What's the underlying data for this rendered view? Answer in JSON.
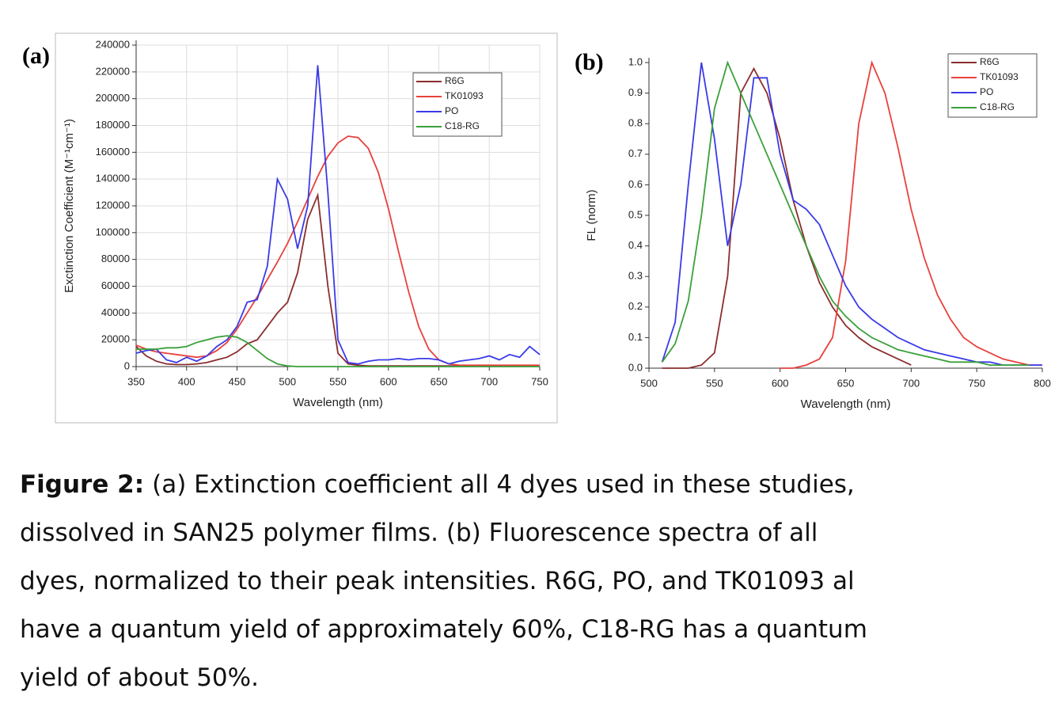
{
  "chart_data": [
    {
      "type": "line",
      "label": "(a)",
      "x_label": "Wavelength (nm)",
      "y_label": "Exctinction Coefficient (M⁻¹cm⁻¹)",
      "x": [
        350,
        360,
        370,
        380,
        390,
        400,
        410,
        420,
        430,
        440,
        450,
        460,
        470,
        480,
        490,
        500,
        510,
        520,
        530,
        540,
        550,
        560,
        570,
        580,
        590,
        600,
        610,
        620,
        630,
        640,
        650,
        660,
        670,
        680,
        690,
        700,
        710,
        720,
        730,
        740,
        750
      ],
      "series": [
        {
          "name": "R6G",
          "color": "#8b2e2e",
          "values": [
            15000,
            8000,
            4000,
            2000,
            1500,
            1500,
            2000,
            3000,
            5000,
            7000,
            11000,
            17000,
            20000,
            30000,
            40000,
            48000,
            70000,
            110000,
            128000,
            60000,
            10000,
            2000,
            1000,
            500,
            500,
            500,
            500,
            500,
            500,
            500,
            500,
            500,
            500,
            500,
            500,
            500,
            500,
            500,
            500,
            500,
            500
          ]
        },
        {
          "name": "TK01093",
          "color": "#e8413c",
          "values": [
            16000,
            13000,
            11000,
            10000,
            9000,
            8000,
            7000,
            8000,
            12000,
            18000,
            28000,
            40000,
            52000,
            65000,
            78000,
            92000,
            108000,
            125000,
            142000,
            157000,
            167000,
            172000,
            171000,
            163000,
            145000,
            118000,
            86000,
            56000,
            30000,
            13000,
            5000,
            2000,
            1000,
            1000,
            1000,
            1000,
            1000,
            1000,
            1000,
            1000,
            1000
          ]
        },
        {
          "name": "PO",
          "color": "#3a3ae8",
          "values": [
            10000,
            12000,
            13000,
            5000,
            3000,
            7000,
            4000,
            8000,
            15000,
            20000,
            30000,
            48000,
            50000,
            75000,
            140000,
            125000,
            88000,
            120000,
            225000,
            130000,
            20000,
            3000,
            2000,
            4000,
            5000,
            5000,
            6000,
            5000,
            6000,
            6000,
            5000,
            2000,
            4000,
            5000,
            6000,
            8000,
            5000,
            9000,
            7000,
            15000,
            9000
          ]
        },
        {
          "name": "C18-RG",
          "color": "#3aa03a",
          "values": [
            13000,
            13000,
            13000,
            14000,
            14000,
            15000,
            18000,
            20000,
            22000,
            23000,
            22000,
            18000,
            12000,
            6000,
            2000,
            500,
            0,
            0,
            0,
            0,
            0,
            0,
            0,
            0,
            0,
            0,
            0,
            0,
            0,
            0,
            0,
            0,
            0,
            0,
            0,
            0,
            0,
            0,
            0,
            0,
            0
          ]
        }
      ],
      "xlim": [
        350,
        750
      ],
      "xticks": [
        350,
        400,
        450,
        500,
        550,
        600,
        650,
        700,
        750
      ],
      "ylim": [
        0,
        240000
      ],
      "yticks": [
        0,
        20000,
        40000,
        60000,
        80000,
        100000,
        120000,
        140000,
        160000,
        180000,
        200000,
        220000,
        240000
      ],
      "grid": true,
      "legend": "upper right"
    },
    {
      "type": "line",
      "label": "(b)",
      "x_label": "Wavelength (nm)",
      "y_label": "FL (norm)",
      "x": [
        510,
        520,
        530,
        540,
        550,
        560,
        570,
        580,
        590,
        600,
        610,
        620,
        630,
        640,
        650,
        660,
        670,
        680,
        690,
        700,
        710,
        720,
        730,
        740,
        750,
        760,
        770,
        780,
        790,
        800
      ],
      "series": [
        {
          "name": "R6G",
          "color": "#8b2e2e",
          "values": [
            0,
            0,
            0,
            0.01,
            0.05,
            0.3,
            0.9,
            0.98,
            0.9,
            0.75,
            0.55,
            0.4,
            0.28,
            0.2,
            0.14,
            0.1,
            0.07,
            0.05,
            0.03,
            0.01,
            null,
            null,
            null,
            null,
            null,
            null,
            null,
            null,
            null,
            null
          ]
        },
        {
          "name": "TK01093",
          "color": "#e8413c",
          "values": [
            null,
            null,
            null,
            null,
            null,
            null,
            null,
            null,
            null,
            0,
            0,
            0.01,
            0.03,
            0.1,
            0.35,
            0.8,
            1.0,
            0.9,
            0.72,
            0.52,
            0.36,
            0.24,
            0.16,
            0.1,
            0.07,
            0.05,
            0.03,
            0.02,
            0.01,
            0.01
          ]
        },
        {
          "name": "PO",
          "color": "#3a3ae8",
          "values": [
            0.02,
            0.15,
            0.6,
            1.0,
            0.75,
            0.4,
            0.6,
            0.95,
            0.95,
            0.7,
            0.55,
            0.52,
            0.47,
            0.37,
            0.27,
            0.2,
            0.16,
            0.13,
            0.1,
            0.08,
            0.06,
            0.05,
            0.04,
            0.03,
            0.02,
            0.02,
            0.01,
            0.01,
            0.01,
            0.01
          ]
        },
        {
          "name": "C18-RG",
          "color": "#3aa03a",
          "values": [
            0.02,
            0.08,
            0.22,
            0.5,
            0.85,
            1.0,
            0.9,
            0.8,
            0.7,
            0.6,
            0.5,
            0.4,
            0.3,
            0.22,
            0.17,
            0.13,
            0.1,
            0.08,
            0.06,
            0.05,
            0.04,
            0.03,
            0.02,
            0.02,
            0.02,
            0.01,
            0.01,
            0.01,
            0.01,
            null
          ]
        }
      ],
      "xlim": [
        500,
        800
      ],
      "xticks": [
        500,
        550,
        600,
        650,
        700,
        750,
        800
      ],
      "ylim": [
        0,
        1.0
      ],
      "yticks": [
        {
          "value": 0,
          "label": "0.0"
        },
        0.1,
        0.2,
        0.3,
        0.4,
        0.5,
        0.6,
        0.7,
        0.8,
        0.9,
        {
          "value": 1.0,
          "label": "1.0"
        }
      ],
      "grid": false,
      "legend": "upper right"
    }
  ],
  "caption": {
    "label": "Figure 2:",
    "lines": [
      "(a) Extinction coefficient all 4 dyes used in these studies,",
      "dissolved in SAN25 polymer films. (b) Fluorescence spectra of all",
      "dyes, normalized to their peak intensities. R6G, PO, and TK01093 al",
      "have a quantum yield of approximately 60%, C18-RG has a quantum",
      "yield of about 50%."
    ]
  }
}
